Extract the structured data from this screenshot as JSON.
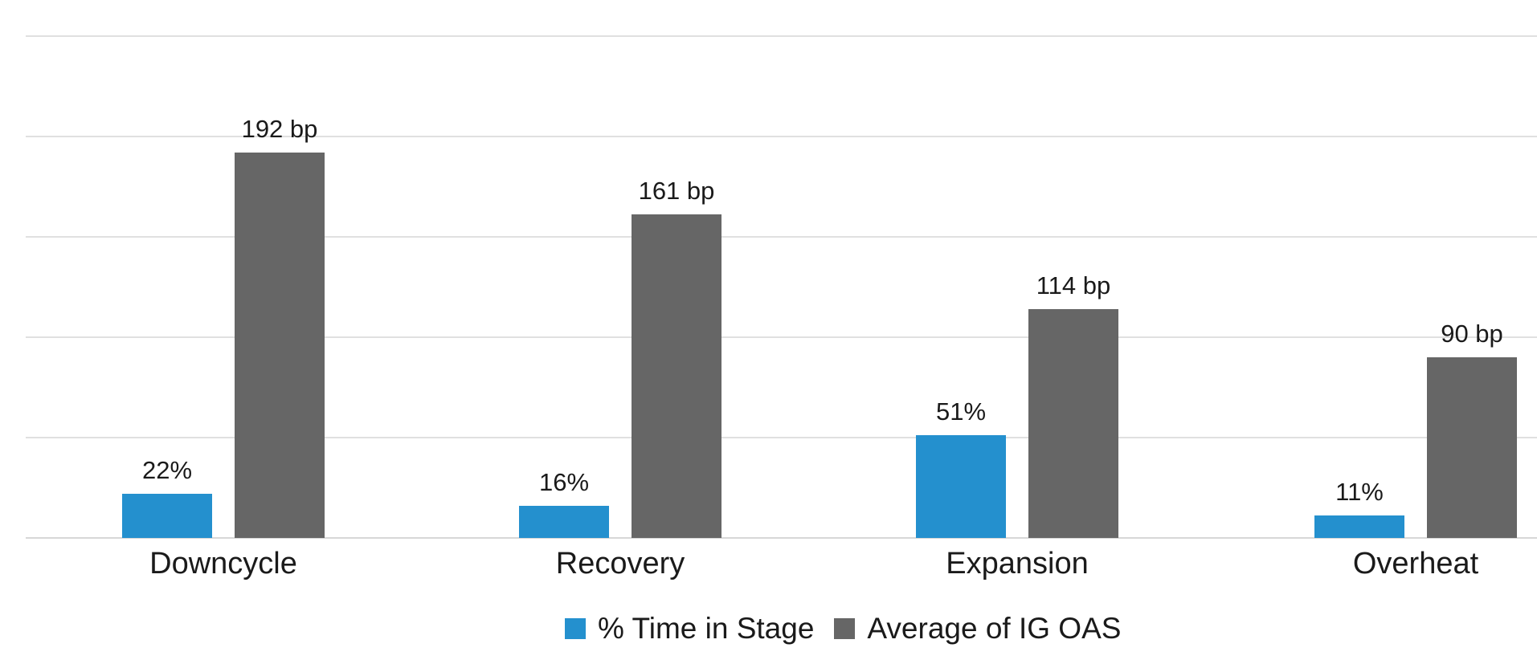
{
  "chart_data": {
    "type": "bar",
    "title": "",
    "xlabel": "",
    "ylabel": "",
    "categories": [
      "Downcycle",
      "Recovery",
      "Expansion",
      "Overheat"
    ],
    "series": [
      {
        "name": "% Time in Stage",
        "unit": "%",
        "color": "#2490CE",
        "values": [
          22,
          16,
          51,
          11
        ],
        "data_labels": [
          "22%",
          "16%",
          "51%",
          "11%"
        ]
      },
      {
        "name": "Average of IG OAS",
        "unit": "bp",
        "color": "#666666",
        "values": [
          192,
          161,
          114,
          90
        ],
        "data_labels": [
          "192 bp",
          "161 bp",
          "114 bp",
          "90 bp"
        ]
      }
    ],
    "ylim": [
      0,
      250
    ],
    "grid": true,
    "gridline_values": [
      0,
      50,
      100,
      150,
      200,
      250
    ],
    "y_tick_labels_visible": false,
    "legend_position": "bottom"
  },
  "colors": {
    "background": "#FFFFFF",
    "gridline": "#E0E0E0",
    "axis_line": "#D7D7D7",
    "text": "#1A1A1A"
  }
}
